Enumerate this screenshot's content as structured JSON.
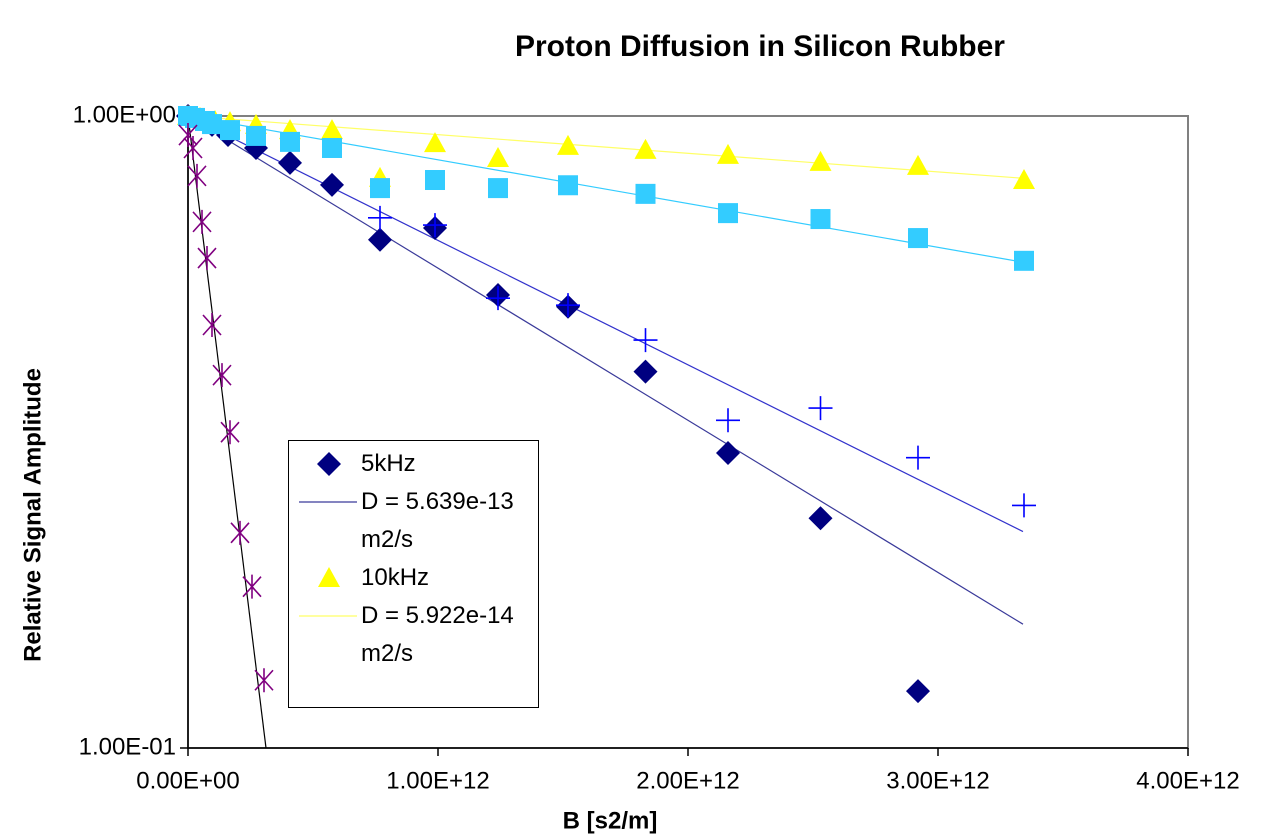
{
  "chart_data": {
    "type": "scatter",
    "title": "Proton Diffusion in Silicon Rubber",
    "x_label": "B [s2/m]",
    "y_label": "Relative Signal Amplitude",
    "ylog": true,
    "grid": false,
    "legend": "inside-left",
    "xlim": [
      0,
      4000000000000
    ],
    "ylim": [
      0.1,
      1
    ],
    "xticks": [
      {
        "value": 0,
        "label": "0.00E+00"
      },
      {
        "value": 1000000000000,
        "label": "1.00E+12"
      },
      {
        "value": 2000000000000,
        "label": "2.00E+12"
      },
      {
        "value": 3000000000000,
        "label": "3.00E+12"
      },
      {
        "value": 4000000000000,
        "label": "4.00E+12"
      }
    ],
    "yticks": [
      {
        "value": 0.1,
        "label": "1.00E-01"
      },
      {
        "value": 1,
        "label": "1.00E+00"
      }
    ],
    "series": [
      {
        "name": "5kHz",
        "color": "#000080",
        "marker": "diamond",
        "x": [
          0,
          96000000000,
          160000000000,
          272000000000,
          408000000000,
          576000000000,
          768000000000,
          988000000000,
          1240000000000,
          1520000000000,
          1830000000000,
          2160000000000,
          2530000000000,
          2920000000000
        ],
        "values": [
          1,
          0.968,
          0.933,
          0.89,
          0.843,
          0.778,
          0.637,
          0.665,
          0.521,
          0.499,
          0.394,
          0.293,
          0.231,
          0.123
        ]
      },
      {
        "name": "D = 5.639e-13 m2/s",
        "color": "#3a3a9a",
        "marker": "none",
        "x": [
          0,
          3340000000000
        ],
        "values": [
          1,
          0.157
        ]
      },
      {
        "name": "10kHz",
        "color": "#ffff00",
        "marker": "triangle",
        "x": [
          0,
          48000000000,
          108000000000,
          168000000000,
          272000000000,
          408000000000,
          576000000000,
          768000000000,
          988000000000,
          1240000000000,
          1520000000000,
          1830000000000,
          2160000000000,
          2530000000000,
          2920000000000,
          3344000000000
        ],
        "values": [
          1,
          0.993,
          0.982,
          0.978,
          0.968,
          0.95,
          0.95,
          0.798,
          0.906,
          0.858,
          0.897,
          0.884,
          0.868,
          0.846,
          0.834,
          0.792
        ]
      },
      {
        "name": "D = 5.922e-14 m2/s",
        "color": "#ffff66",
        "marker": "none",
        "x": [
          0,
          3340000000000
        ],
        "values": [
          1,
          0.797
        ]
      },
      {
        "color": "#33ccff",
        "marker": "square",
        "x": [
          0,
          28000000000,
          68000000000,
          96000000000,
          168000000000,
          272000000000,
          408000000000,
          576000000000,
          768000000000,
          988000000000,
          1240000000000,
          1520000000000,
          1830000000000,
          2160000000000,
          2530000000000,
          2920000000000,
          3344000000000
        ],
        "values": [
          1,
          0.993,
          0.982,
          0.971,
          0.95,
          0.93,
          0.91,
          0.89,
          0.769,
          0.792,
          0.769,
          0.777,
          0.753,
          0.702,
          0.687,
          0.641,
          0.59
        ]
      },
      {
        "color": "#33ccff",
        "marker": "none",
        "x": [
          0,
          3340000000000
        ],
        "values": [
          1,
          0.587
        ]
      },
      {
        "color": "#0000ff",
        "marker": "plus",
        "x": [
          768000000000,
          988000000000,
          1240000000000,
          1520000000000,
          1830000000000,
          2160000000000,
          2530000000000,
          2920000000000,
          3344000000000
        ],
        "values": [
          0.69,
          0.672,
          0.515,
          0.502,
          0.442,
          0.33,
          0.345,
          0.288,
          0.242
        ]
      },
      {
        "color": "#3333cc",
        "marker": "none",
        "x": [
          0,
          3340000000000
        ],
        "values": [
          1,
          0.22
        ]
      },
      {
        "color": "#800080",
        "marker": "star",
        "x": [
          0,
          20000000000,
          36000000000,
          56000000000,
          76000000000,
          96000000000,
          136000000000,
          168000000000,
          208000000000,
          256000000000,
          304000000000
        ],
        "values": [
          0.933,
          0.89,
          0.804,
          0.68,
          0.596,
          0.467,
          0.389,
          0.316,
          0.219,
          0.18,
          0.128
        ]
      },
      {
        "color": "#000000",
        "marker": "none",
        "x": [
          0,
          312000000000
        ],
        "values": [
          1,
          0.1
        ]
      }
    ]
  }
}
